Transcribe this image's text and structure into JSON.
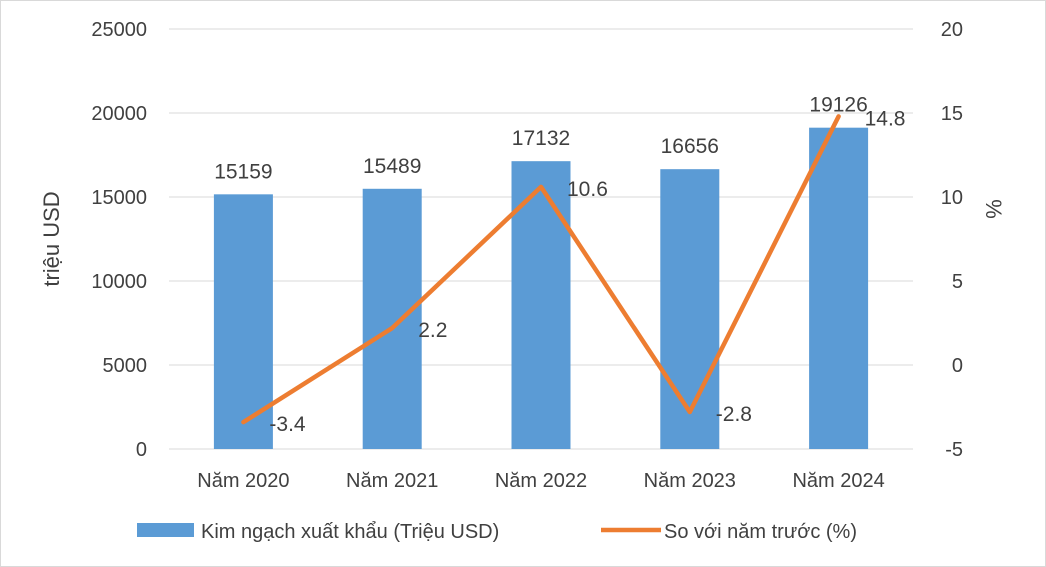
{
  "chart_data": {
    "type": "bar",
    "categories": [
      "Năm 2020",
      "Năm 2021",
      "Năm 2022",
      "Năm 2023",
      "Năm 2024"
    ],
    "series": [
      {
        "name": "Kim ngạch xuất khẩu (Triệu USD)",
        "type": "bar",
        "axis": "left",
        "color": "#5B9BD5",
        "values": [
          15159,
          15489,
          17132,
          16656,
          19126
        ]
      },
      {
        "name": "So với năm trước (%)",
        "type": "line",
        "axis": "right",
        "color": "#ED7D31",
        "values": [
          -3.4,
          2.2,
          10.6,
          -2.8,
          14.8
        ]
      }
    ],
    "ylabel": "triệu USD",
    "y2label": "%",
    "ylim": [
      0,
      25000
    ],
    "y2lim": [
      -5,
      20
    ],
    "yticks": [
      "0",
      "5000",
      "10000",
      "15000",
      "20000",
      "25000"
    ],
    "y2ticks": [
      "-5",
      "0",
      "5",
      "10",
      "15",
      "20"
    ],
    "grid": true,
    "legend_position": "bottom"
  }
}
